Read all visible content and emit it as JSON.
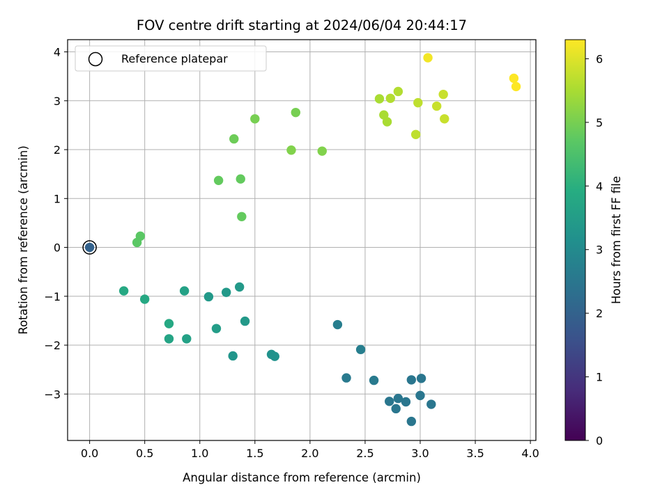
{
  "chart_data": {
    "type": "scatter",
    "title": "FOV centre drift starting at 2024/06/04 20:44:17",
    "xlabel": "Angular distance from reference (arcmin)",
    "ylabel": "Rotation from reference (arcmin)",
    "xlim": [
      -0.2,
      4.05
    ],
    "ylim": [
      -3.95,
      4.25
    ],
    "xticks": [
      0.0,
      0.5,
      1.0,
      1.5,
      2.0,
      2.5,
      3.0,
      3.5,
      4.0
    ],
    "xtick_labels": [
      "0.0",
      "0.5",
      "1.0",
      "1.5",
      "2.0",
      "2.5",
      "3.0",
      "3.5",
      "4.0"
    ],
    "yticks": [
      -3,
      -2,
      -1,
      0,
      1,
      2,
      3,
      4
    ],
    "ytick_labels": [
      "−3",
      "−2",
      "−1",
      "0",
      "1",
      "2",
      "3",
      "4"
    ],
    "grid": true,
    "legend": {
      "position": "upper-left",
      "entries": [
        "Reference platepar"
      ]
    },
    "colorbar": {
      "label": "Hours from first FF file",
      "colormap": "viridis",
      "range": [
        0,
        6.3
      ],
      "ticks": [
        0,
        1,
        2,
        3,
        4,
        5,
        6
      ],
      "tick_labels": [
        "0",
        "1",
        "2",
        "3",
        "4",
        "5",
        "6"
      ]
    },
    "reference_point": {
      "x": 0.0,
      "y": 0.0,
      "label": "Reference platepar"
    },
    "points": [
      {
        "x": 0.0,
        "y": 0.0,
        "t": 2.0
      },
      {
        "x": 1.3,
        "y": -2.22,
        "t": 3.3
      },
      {
        "x": 1.65,
        "y": -2.19,
        "t": 3.2
      },
      {
        "x": 1.68,
        "y": -2.23,
        "t": 3.2
      },
      {
        "x": 2.25,
        "y": -1.58,
        "t": 2.7
      },
      {
        "x": 2.46,
        "y": -2.09,
        "t": 2.7
      },
      {
        "x": 2.33,
        "y": -2.67,
        "t": 2.6
      },
      {
        "x": 2.58,
        "y": -2.72,
        "t": 2.6
      },
      {
        "x": 2.92,
        "y": -2.71,
        "t": 2.5
      },
      {
        "x": 3.01,
        "y": -2.68,
        "t": 2.5
      },
      {
        "x": 3.0,
        "y": -3.03,
        "t": 2.5
      },
      {
        "x": 3.1,
        "y": -3.21,
        "t": 2.5
      },
      {
        "x": 2.72,
        "y": -3.15,
        "t": 2.5
      },
      {
        "x": 2.8,
        "y": -3.09,
        "t": 2.5
      },
      {
        "x": 2.87,
        "y": -3.16,
        "t": 2.5
      },
      {
        "x": 2.78,
        "y": -3.3,
        "t": 2.5
      },
      {
        "x": 2.92,
        "y": -3.56,
        "t": 2.5
      },
      {
        "x": 0.31,
        "y": -0.89,
        "t": 3.8
      },
      {
        "x": 0.5,
        "y": -1.06,
        "t": 3.8
      },
      {
        "x": 0.72,
        "y": -1.56,
        "t": 3.8
      },
      {
        "x": 0.72,
        "y": -1.87,
        "t": 3.7
      },
      {
        "x": 0.86,
        "y": -0.89,
        "t": 3.6
      },
      {
        "x": 0.88,
        "y": -1.87,
        "t": 3.6
      },
      {
        "x": 1.08,
        "y": -1.01,
        "t": 3.4
      },
      {
        "x": 1.15,
        "y": -1.66,
        "t": 3.5
      },
      {
        "x": 1.24,
        "y": -0.92,
        "t": 3.4
      },
      {
        "x": 1.36,
        "y": -0.81,
        "t": 3.4
      },
      {
        "x": 1.41,
        "y": -1.51,
        "t": 3.4
      },
      {
        "x": 0.43,
        "y": 0.1,
        "t": 4.7
      },
      {
        "x": 0.46,
        "y": 0.23,
        "t": 4.7
      },
      {
        "x": 1.17,
        "y": 1.37,
        "t": 4.8
      },
      {
        "x": 1.37,
        "y": 1.4,
        "t": 4.8
      },
      {
        "x": 1.38,
        "y": 0.63,
        "t": 4.8
      },
      {
        "x": 1.31,
        "y": 2.22,
        "t": 4.9
      },
      {
        "x": 1.5,
        "y": 2.63,
        "t": 5.0
      },
      {
        "x": 1.87,
        "y": 2.76,
        "t": 5.0
      },
      {
        "x": 1.83,
        "y": 1.99,
        "t": 5.1
      },
      {
        "x": 2.11,
        "y": 1.97,
        "t": 5.1
      },
      {
        "x": 2.63,
        "y": 3.04,
        "t": 5.5
      },
      {
        "x": 2.67,
        "y": 2.71,
        "t": 5.5
      },
      {
        "x": 2.7,
        "y": 2.57,
        "t": 5.5
      },
      {
        "x": 2.73,
        "y": 3.05,
        "t": 5.6
      },
      {
        "x": 2.8,
        "y": 3.19,
        "t": 5.6
      },
      {
        "x": 2.98,
        "y": 2.96,
        "t": 5.7
      },
      {
        "x": 2.96,
        "y": 2.31,
        "t": 5.7
      },
      {
        "x": 3.15,
        "y": 2.89,
        "t": 5.8
      },
      {
        "x": 3.21,
        "y": 3.13,
        "t": 5.8
      },
      {
        "x": 3.22,
        "y": 2.63,
        "t": 5.8
      },
      {
        "x": 3.07,
        "y": 3.88,
        "t": 6.2
      },
      {
        "x": 3.85,
        "y": 3.46,
        "t": 6.3
      },
      {
        "x": 3.87,
        "y": 3.29,
        "t": 6.3
      }
    ]
  }
}
